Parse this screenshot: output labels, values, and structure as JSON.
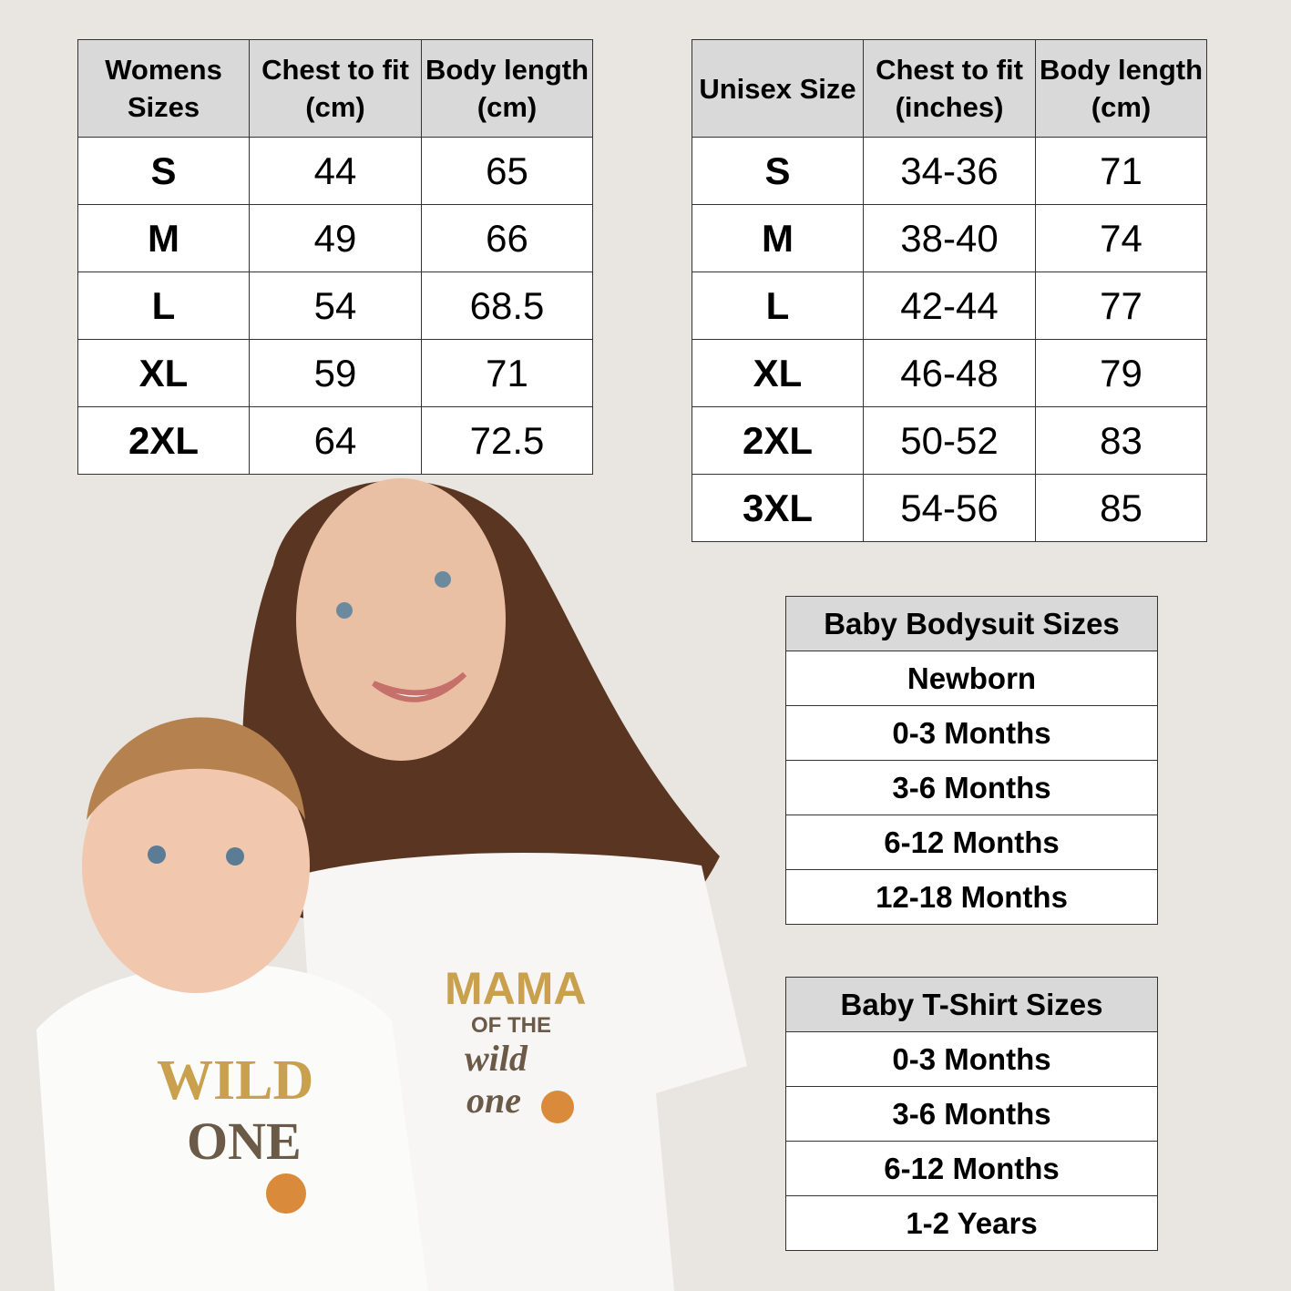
{
  "womens": {
    "headers": [
      "Womens Sizes",
      "Chest to fit (cm)",
      "Body length (cm)"
    ],
    "rows": [
      [
        "S",
        "44",
        "65"
      ],
      [
        "M",
        "49",
        "66"
      ],
      [
        "L",
        "54",
        "68.5"
      ],
      [
        "XL",
        "59",
        "71"
      ],
      [
        "2XL",
        "64",
        "72.5"
      ]
    ]
  },
  "unisex": {
    "headers": [
      "Unisex Size",
      "Chest to fit (inches)",
      "Body length (cm)"
    ],
    "rows": [
      [
        "S",
        "34-36",
        "71"
      ],
      [
        "M",
        "38-40",
        "74"
      ],
      [
        "L",
        "42-44",
        "77"
      ],
      [
        "XL",
        "46-48",
        "79"
      ],
      [
        "2XL",
        "50-52",
        "83"
      ],
      [
        "3XL",
        "54-56",
        "85"
      ]
    ]
  },
  "bodysuit": {
    "header": "Baby Bodysuit Sizes",
    "rows": [
      "Newborn",
      "0-3 Months",
      "3-6 Months",
      "6-12 Months",
      "12-18 Months"
    ]
  },
  "tshirt": {
    "header": "Baby T-Shirt Sizes",
    "rows": [
      "0-3 Months",
      "3-6 Months",
      "6-12 Months",
      "1-2 Years"
    ]
  },
  "shirt_prints": {
    "mama": "MAMA",
    "of_the": "OF THE",
    "wild": "wild",
    "one": "one",
    "baby_wild": "WILD",
    "baby_one": "ONE"
  },
  "colors": {
    "background": "#e9e5e0",
    "header": "#d9d9d9",
    "gold": "#c9a04e",
    "brown": "#6b5a48",
    "flower": "#d98a3a"
  }
}
